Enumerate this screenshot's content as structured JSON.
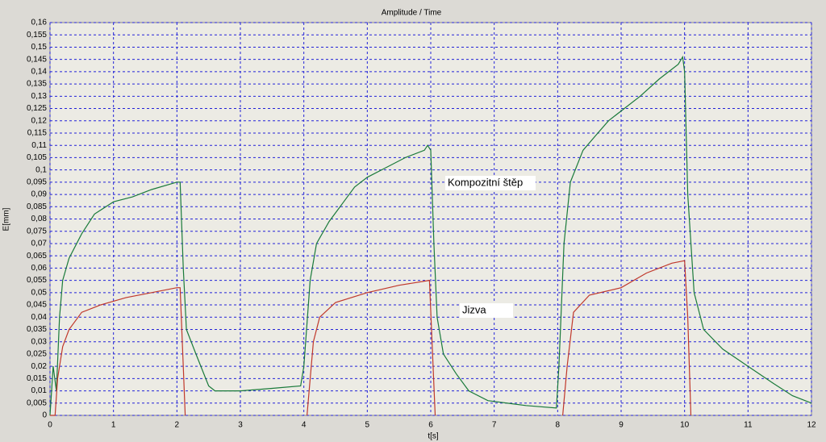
{
  "chart_data": {
    "type": "line",
    "title": "Amplitude / Time",
    "x_label": "t[s]",
    "y_label": "E[mm]",
    "xlim": [
      0,
      12
    ],
    "xticks": [
      0,
      1,
      2,
      3,
      4,
      5,
      6,
      7,
      8,
      9,
      10,
      11,
      12
    ],
    "ylim": [
      0,
      0.16
    ],
    "yticks": [
      0,
      {
        "value": 0.005,
        "label": "0,005"
      },
      {
        "value": 0.01,
        "label": "0,01"
      },
      {
        "value": 0.015,
        "label": "0,015"
      },
      {
        "value": 0.02,
        "label": "0,02"
      },
      {
        "value": 0.025,
        "label": "0,025"
      },
      {
        "value": 0.03,
        "label": "0,03"
      },
      {
        "value": 0.035,
        "label": "0,035"
      },
      {
        "value": 0.04,
        "label": "0,04"
      },
      {
        "value": 0.045,
        "label": "0,045"
      },
      {
        "value": 0.05,
        "label": "0,05"
      },
      {
        "value": 0.055,
        "label": "0,055"
      },
      {
        "value": 0.06,
        "label": "0,06"
      },
      {
        "value": 0.065,
        "label": "0,065"
      },
      {
        "value": 0.07,
        "label": "0,07"
      },
      {
        "value": 0.075,
        "label": "0,075"
      },
      {
        "value": 0.08,
        "label": "0,08"
      },
      {
        "value": 0.085,
        "label": "0,085"
      },
      {
        "value": 0.09,
        "label": "0,09"
      },
      {
        "value": 0.095,
        "label": "0,095"
      },
      {
        "value": 0.1,
        "label": "0,1"
      },
      {
        "value": 0.105,
        "label": "0,105"
      },
      {
        "value": 0.11,
        "label": "0,11"
      },
      {
        "value": 0.115,
        "label": "0,115"
      },
      {
        "value": 0.12,
        "label": "0,12"
      },
      {
        "value": 0.125,
        "label": "0,125"
      },
      {
        "value": 0.13,
        "label": "0,13"
      },
      {
        "value": 0.135,
        "label": "0,135"
      },
      {
        "value": 0.14,
        "label": "0,14"
      },
      {
        "value": 0.145,
        "label": "0,145"
      },
      {
        "value": 0.15,
        "label": "0,15"
      },
      {
        "value": 0.155,
        "label": "0,155"
      },
      {
        "value": 0.16,
        "label": "0,16"
      }
    ],
    "grid": true,
    "annotations": [
      "Kompozitní štěp",
      "Jizva"
    ],
    "series": [
      {
        "name": "Kompozitní štěp",
        "color": "#1a7a3a",
        "x": [
          0,
          0.05,
          0.1,
          0.15,
          0.2,
          0.3,
          0.5,
          0.7,
          1.0,
          1.3,
          1.6,
          2.0,
          2.05,
          2.1,
          2.15,
          2.3,
          2.5,
          2.6,
          3.0,
          3.5,
          3.95,
          4.0,
          4.1,
          4.2,
          4.4,
          4.6,
          4.8,
          5.0,
          5.3,
          5.6,
          5.9,
          5.95,
          6.0,
          6.05,
          6.1,
          6.2,
          6.4,
          6.6,
          6.9,
          7.5,
          7.98,
          8.02,
          8.1,
          8.2,
          8.4,
          8.6,
          8.8,
          9.0,
          9.3,
          9.6,
          9.9,
          9.97,
          10.0,
          10.05,
          10.15,
          10.3,
          10.6,
          11.0,
          11.4,
          11.7,
          12.0
        ],
        "values": [
          0,
          0.02,
          0.01,
          0.04,
          0.055,
          0.064,
          0.074,
          0.082,
          0.087,
          0.089,
          0.092,
          0.095,
          0.095,
          0.06,
          0.035,
          0.025,
          0.012,
          0.01,
          0.01,
          0.011,
          0.012,
          0.02,
          0.055,
          0.07,
          0.079,
          0.086,
          0.093,
          0.097,
          0.101,
          0.105,
          0.108,
          0.11,
          0.108,
          0.07,
          0.04,
          0.025,
          0.017,
          0.01,
          0.006,
          0.004,
          0.003,
          0.02,
          0.07,
          0.095,
          0.108,
          0.114,
          0.12,
          0.124,
          0.13,
          0.137,
          0.143,
          0.146,
          0.14,
          0.09,
          0.05,
          0.035,
          0.027,
          0.02,
          0.013,
          0.008,
          0.005
        ]
      },
      {
        "name": "Jizva",
        "color": "#c0382b",
        "x": [
          0,
          0.08,
          0.12,
          0.2,
          0.3,
          0.5,
          0.8,
          1.2,
          1.6,
          2.0,
          2.05,
          2.1,
          2.13,
          3,
          4.05,
          4.15,
          4.25,
          4.5,
          5.0,
          5.5,
          5.98,
          6.02,
          6.07,
          7,
          8.08,
          8.15,
          8.25,
          8.5,
          9.0,
          9.4,
          9.8,
          10.0,
          10.05,
          10.1
        ],
        "values": [
          0,
          0,
          0.015,
          0.028,
          0.035,
          0.042,
          0.045,
          0.048,
          0.05,
          0.052,
          0.052,
          0.02,
          0,
          null,
          0,
          0.03,
          0.04,
          0.046,
          0.05,
          0.053,
          0.055,
          0.03,
          0,
          null,
          0,
          0.02,
          0.042,
          0.049,
          0.052,
          0.058,
          0.062,
          0.063,
          0.04,
          0
        ]
      }
    ]
  }
}
